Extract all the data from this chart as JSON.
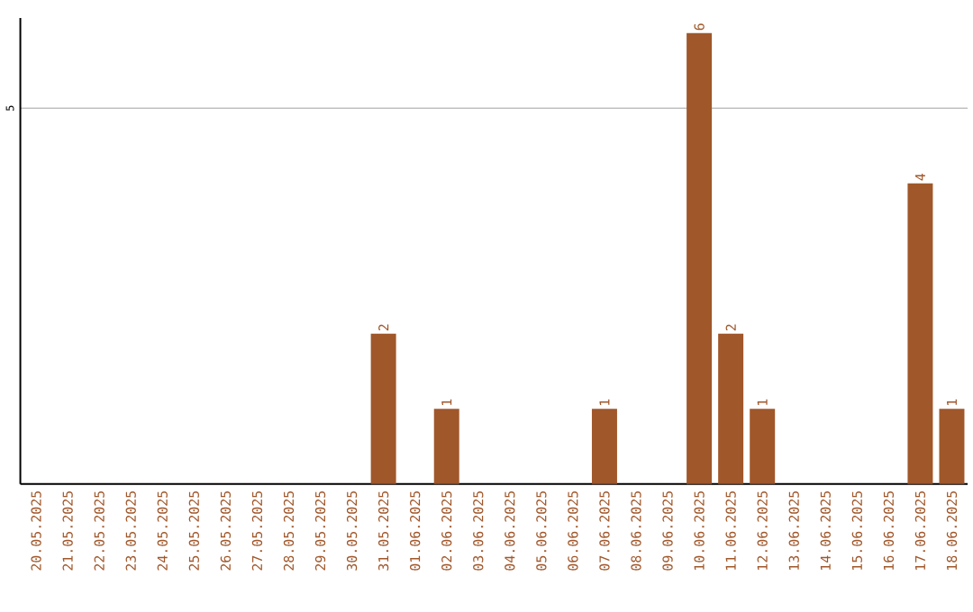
{
  "chart_data": {
    "type": "bar",
    "categories": [
      "20.05.2025",
      "21.05.2025",
      "22.05.2025",
      "23.05.2025",
      "24.05.2025",
      "25.05.2025",
      "26.05.2025",
      "27.05.2025",
      "28.05.2025",
      "29.05.2025",
      "30.05.2025",
      "31.05.2025",
      "01.06.2025",
      "02.06.2025",
      "03.06.2025",
      "04.06.2025",
      "05.06.2025",
      "06.06.2025",
      "07.06.2025",
      "08.06.2025",
      "09.06.2025",
      "10.06.2025",
      "11.06.2025",
      "12.06.2025",
      "13.06.2025",
      "14.06.2025",
      "15.06.2025",
      "16.06.2025",
      "17.06.2025",
      "18.06.2025"
    ],
    "values": [
      0,
      0,
      0,
      0,
      0,
      0,
      0,
      0,
      0,
      0,
      0,
      2,
      0,
      1,
      0,
      0,
      0,
      0,
      1,
      0,
      0,
      6,
      2,
      1,
      0,
      0,
      0,
      0,
      4,
      1
    ],
    "color": "#a0572a",
    "value_labels": [
      null,
      null,
      null,
      null,
      null,
      null,
      null,
      null,
      null,
      null,
      null,
      "2",
      null,
      "1",
      null,
      null,
      null,
      null,
      "1",
      null,
      null,
      "6",
      "2",
      "1",
      null,
      null,
      null,
      null,
      "4",
      "1"
    ],
    "ylim": [
      0,
      6.2
    ],
    "yticks": [
      5
    ],
    "grid": "y"
  }
}
